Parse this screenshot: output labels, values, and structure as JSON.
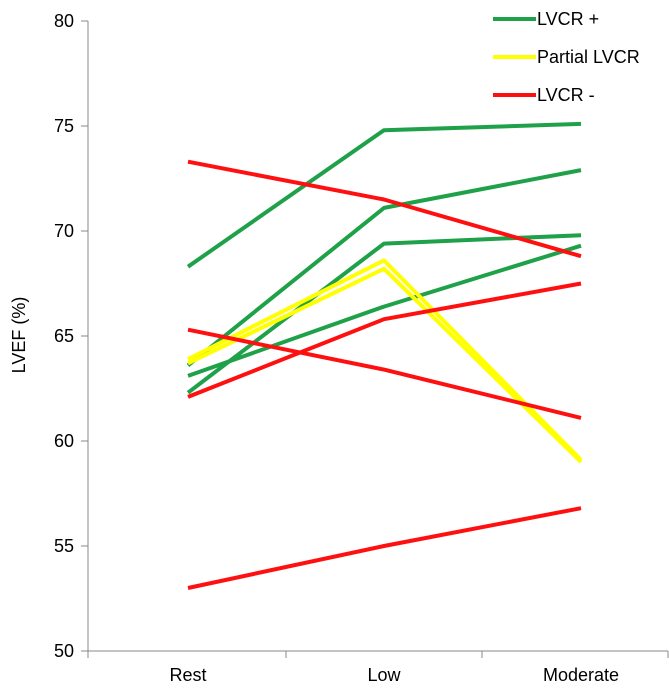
{
  "chart_data": {
    "type": "line",
    "title": "",
    "xlabel": "",
    "ylabel": "LVEF (%)",
    "categories": [
      "Rest",
      "Low",
      "Moderate"
    ],
    "ylim": [
      50,
      80
    ],
    "yticks": [
      50,
      55,
      60,
      65,
      70,
      75,
      80
    ],
    "grid": false,
    "legend_placement": "top-right",
    "legend": [
      {
        "label": "LVCR +",
        "color": "#1fa14a"
      },
      {
        "label": "Partial LVCR",
        "color": "#ffff00"
      },
      {
        "label": "LVCR -",
        "color": "#ff1010"
      }
    ],
    "series": [
      {
        "group": "LVCR +",
        "color": "#1fa14a",
        "values": [
          68.3,
          74.8,
          75.1
        ]
      },
      {
        "group": "LVCR +",
        "color": "#1fa14a",
        "values": [
          63.6,
          71.1,
          72.9
        ]
      },
      {
        "group": "LVCR +",
        "color": "#1fa14a",
        "values": [
          62.3,
          69.4,
          69.8
        ]
      },
      {
        "group": "LVCR +",
        "color": "#1fa14a",
        "values": [
          63.1,
          66.4,
          69.3
        ]
      },
      {
        "group": "Partial LVCR",
        "color": "#ffff00",
        "values": [
          63.9,
          68.6,
          59.1
        ]
      },
      {
        "group": "Partial LVCR",
        "color": "#ffff00",
        "values": [
          63.7,
          68.2,
          59.0
        ]
      },
      {
        "group": "LVCR -",
        "color": "#ff1010",
        "values": [
          73.3,
          71.5,
          68.8
        ]
      },
      {
        "group": "LVCR -",
        "color": "#ff1010",
        "values": [
          65.3,
          63.4,
          61.1
        ]
      },
      {
        "group": "LVCR -",
        "color": "#ff1010",
        "values": [
          62.1,
          65.8,
          67.5
        ]
      },
      {
        "group": "LVCR -",
        "color": "#ff1010",
        "values": [
          53.0,
          55.0,
          56.8
        ]
      }
    ]
  }
}
